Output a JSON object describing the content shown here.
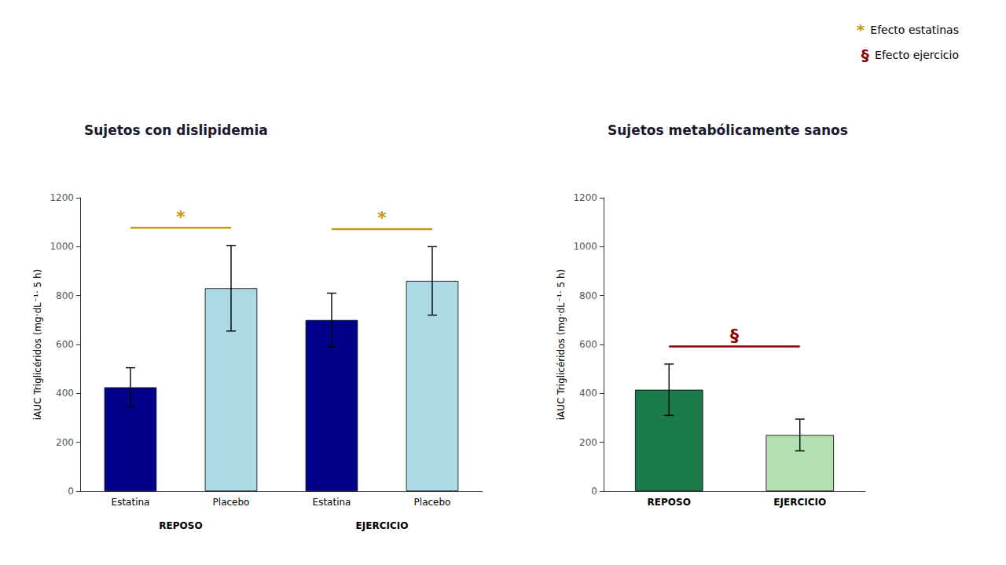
{
  "chart_data": [
    {
      "type": "bar",
      "title": "Sujetos con dislipidemia",
      "ylabel": "iAUC Triglicéridos (mg·dL⁻¹· 5 h)",
      "categories": [
        "Estatina",
        "Placebo",
        "Estatina",
        "Placebo"
      ],
      "groups": [
        "REPOSO",
        "EJERCICIO"
      ],
      "values": [
        425,
        830,
        700,
        860
      ],
      "errors": [
        80,
        175,
        110,
        140
      ],
      "colors": [
        "#00008B",
        "#add8e6",
        "#00008B",
        "#add8e6"
      ],
      "ylim": [
        0,
        1200
      ],
      "yticks": [
        0,
        200,
        400,
        600,
        800,
        1000,
        1200
      ],
      "grid": false,
      "legend": "upper right",
      "annotations": [
        {
          "text": "*",
          "label": "Efecto estatinas",
          "color": "#c8960c",
          "between": [
            0,
            1
          ]
        },
        {
          "text": "*",
          "label": "Efecto estatinas",
          "color": "#c8960c",
          "between": [
            2,
            3
          ]
        }
      ]
    },
    {
      "type": "bar",
      "title": "Sujetos metabólicamente sanos",
      "ylabel": "iAUC Triglicéridos (mg·dL⁻¹· 5 h)",
      "categories": [
        "REPOSO",
        "EJERCICIO"
      ],
      "values": [
        415,
        230
      ],
      "errors": [
        105,
        65
      ],
      "colors": [
        "#1a7a4a",
        "#b2e0b2"
      ],
      "ylim": [
        0,
        1200
      ],
      "yticks": [
        0,
        200,
        400,
        600,
        800,
        1000,
        1200
      ],
      "grid": false,
      "legend": "upper right",
      "annotations": [
        {
          "text": "§",
          "label": "Efecto ejercicio",
          "color": "#8b0000",
          "between": [
            0,
            1
          ]
        }
      ]
    }
  ]
}
